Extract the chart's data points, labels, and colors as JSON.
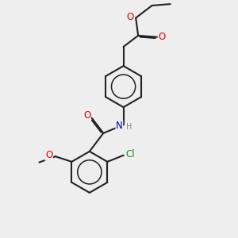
{
  "bg": "#eeeeee",
  "bond_color": "#222222",
  "lw": 1.5,
  "dbo": 0.04,
  "atom_colors": {
    "O": "#dd0000",
    "N": "#0000bb",
    "Cl": "#228822",
    "H": "#888888"
  },
  "fs": 8.5,
  "fs_small": 7.0,
  "xlim": [
    0.0,
    6.5
  ],
  "ylim": [
    -4.5,
    3.5
  ]
}
